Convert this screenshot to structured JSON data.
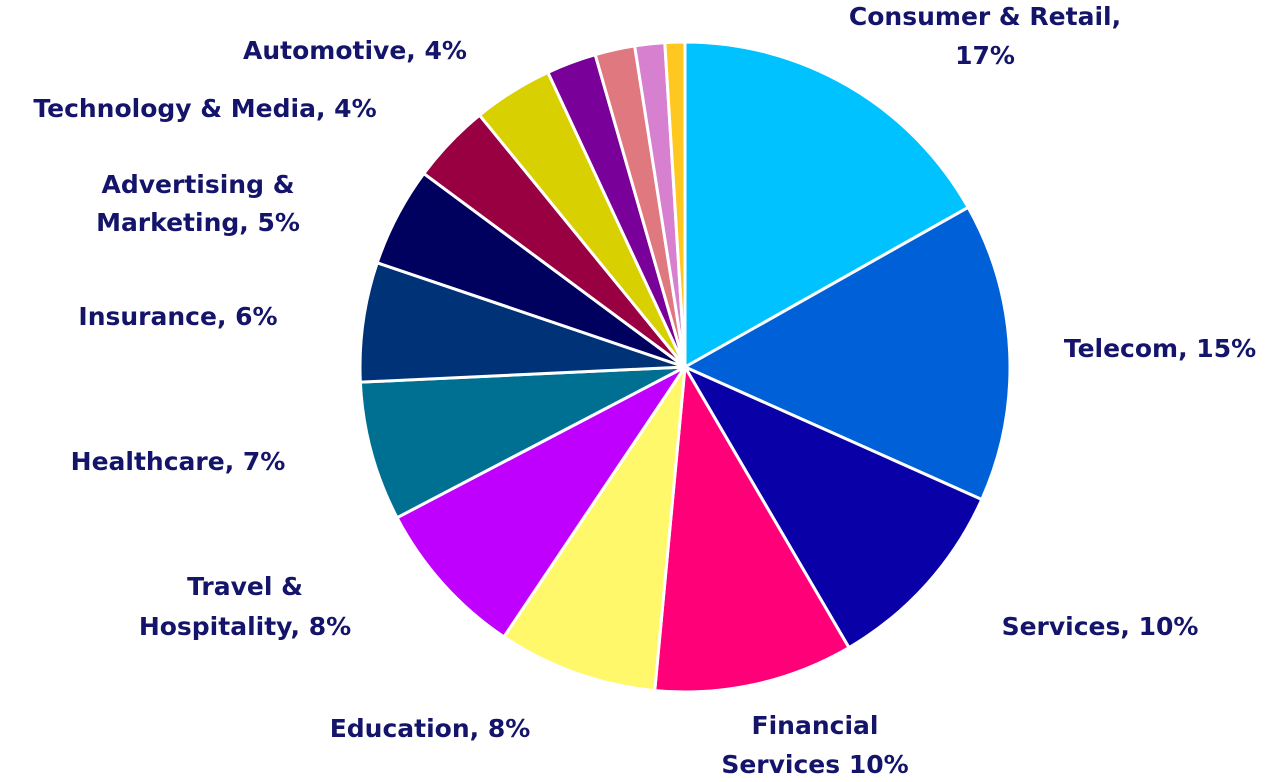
{
  "chart_data": {
    "type": "pie",
    "categories": [
      "Consumer & Retail",
      "Telecom",
      "Services",
      "Financial Services",
      "Education",
      "Travel & Hospitality",
      "Healthcare",
      "Insurance",
      "Advertising & Marketing",
      "Technology & Media",
      "Automotive",
      null,
      null,
      null,
      null
    ],
    "values": [
      17,
      15,
      10,
      10,
      8,
      8,
      7,
      6,
      5,
      4,
      4,
      2.5,
      2,
      1.5,
      1
    ],
    "value_labels": [
      [
        "Consumer & Retail,",
        "17%"
      ],
      [
        "Telecom, 15%"
      ],
      [
        "Services, 10%"
      ],
      [
        "Financial",
        "Services 10%"
      ],
      [
        "Education, 8%"
      ],
      [
        "Travel &",
        "Hospitality, 8%"
      ],
      [
        "Healthcare, 7%"
      ],
      [
        "Insurance, 6%"
      ],
      [
        "Advertising &",
        "Marketing, 5%"
      ],
      [
        "Technology & Media, 4%"
      ],
      [
        "Automotive, 4%"
      ],
      null,
      null,
      null,
      null
    ],
    "colors": [
      "#00c2ff",
      "#0060d8",
      "#0a00a8",
      "#ff0078",
      "#fff86a",
      "#c000ff",
      "#007092",
      "#003278",
      "#00005e",
      "#980042",
      "#d8d000",
      "#7a009a",
      "#e07880",
      "#d880d0",
      "#ffc820"
    ]
  }
}
